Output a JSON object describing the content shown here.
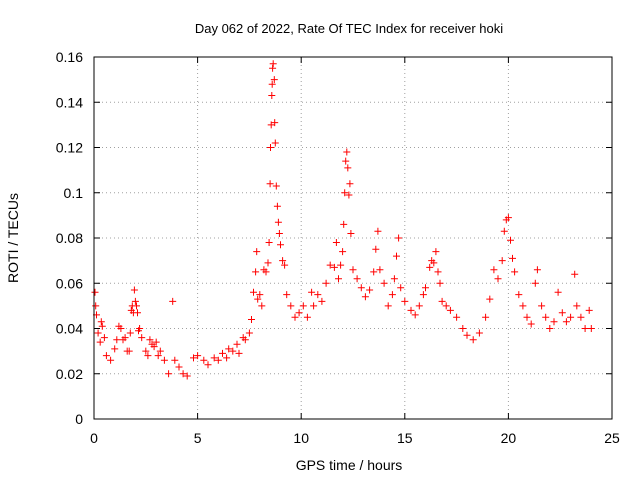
{
  "chart_data": {
    "type": "scatter",
    "title": "Day 062 of 2022, Rate Of TEC Index for receiver hoki",
    "xlabel": "GPS time / hours",
    "ylabel": "ROTI / TECUs",
    "xlim": [
      0,
      25
    ],
    "ylim": [
      0,
      0.16
    ],
    "x_ticks": [
      "0",
      "5",
      "10",
      "15",
      "20",
      "25"
    ],
    "y_ticks": [
      "0",
      "0.02",
      "0.04",
      "0.06",
      "0.08",
      "0.1",
      "0.12",
      "0.14",
      "0.16"
    ],
    "grid": true,
    "marker": "plus",
    "color": "#ff0000",
    "series": [
      {
        "name": "",
        "points": [
          [
            0.05,
            0.056
          ],
          [
            0.08,
            0.05
          ],
          [
            0.12,
            0.046
          ],
          [
            0.2,
            0.038
          ],
          [
            0.3,
            0.034
          ],
          [
            0.35,
            0.043
          ],
          [
            0.4,
            0.041
          ],
          [
            0.5,
            0.036
          ],
          [
            0.6,
            0.028
          ],
          [
            0.8,
            0.026
          ],
          [
            1.0,
            0.031
          ],
          [
            1.1,
            0.035
          ],
          [
            1.2,
            0.041
          ],
          [
            1.3,
            0.04
          ],
          [
            1.4,
            0.035
          ],
          [
            1.5,
            0.036
          ],
          [
            1.6,
            0.03
          ],
          [
            1.7,
            0.03
          ],
          [
            1.75,
            0.038
          ],
          [
            1.8,
            0.048
          ],
          [
            1.85,
            0.05
          ],
          [
            1.9,
            0.047
          ],
          [
            1.95,
            0.057
          ],
          [
            2.0,
            0.052
          ],
          [
            2.05,
            0.05
          ],
          [
            2.1,
            0.047
          ],
          [
            2.15,
            0.039
          ],
          [
            2.2,
            0.04
          ],
          [
            2.3,
            0.036
          ],
          [
            2.5,
            0.03
          ],
          [
            2.6,
            0.028
          ],
          [
            2.7,
            0.035
          ],
          [
            2.8,
            0.033
          ],
          [
            2.9,
            0.032
          ],
          [
            3.0,
            0.034
          ],
          [
            3.1,
            0.028
          ],
          [
            3.2,
            0.03
          ],
          [
            3.4,
            0.026
          ],
          [
            3.6,
            0.02
          ],
          [
            3.8,
            0.052
          ],
          [
            3.9,
            0.026
          ],
          [
            4.1,
            0.023
          ],
          [
            4.3,
            0.02
          ],
          [
            4.5,
            0.019
          ],
          [
            4.8,
            0.027
          ],
          [
            5.0,
            0.028
          ],
          [
            5.3,
            0.026
          ],
          [
            5.5,
            0.024
          ],
          [
            5.8,
            0.027
          ],
          [
            6.0,
            0.026
          ],
          [
            6.2,
            0.029
          ],
          [
            6.4,
            0.027
          ],
          [
            6.5,
            0.031
          ],
          [
            6.7,
            0.03
          ],
          [
            6.9,
            0.033
          ],
          [
            7.0,
            0.029
          ],
          [
            7.2,
            0.036
          ],
          [
            7.3,
            0.035
          ],
          [
            7.5,
            0.038
          ],
          [
            7.6,
            0.044
          ],
          [
            7.7,
            0.056
          ],
          [
            7.8,
            0.065
          ],
          [
            7.85,
            0.074
          ],
          [
            7.9,
            0.053
          ],
          [
            8.0,
            0.055
          ],
          [
            8.1,
            0.05
          ],
          [
            8.2,
            0.066
          ],
          [
            8.3,
            0.065
          ],
          [
            8.4,
            0.069
          ],
          [
            8.45,
            0.078
          ],
          [
            8.5,
            0.104
          ],
          [
            8.52,
            0.12
          ],
          [
            8.55,
            0.13
          ],
          [
            8.58,
            0.143
          ],
          [
            8.6,
            0.148
          ],
          [
            8.62,
            0.155
          ],
          [
            8.65,
            0.157
          ],
          [
            8.7,
            0.15
          ],
          [
            8.72,
            0.131
          ],
          [
            8.75,
            0.122
          ],
          [
            8.8,
            0.103
          ],
          [
            8.85,
            0.094
          ],
          [
            8.9,
            0.087
          ],
          [
            8.95,
            0.082
          ],
          [
            9.0,
            0.077
          ],
          [
            9.1,
            0.07
          ],
          [
            9.2,
            0.068
          ],
          [
            9.3,
            0.055
          ],
          [
            9.5,
            0.05
          ],
          [
            9.7,
            0.045
          ],
          [
            9.9,
            0.047
          ],
          [
            10.1,
            0.05
          ],
          [
            10.3,
            0.045
          ],
          [
            10.5,
            0.056
          ],
          [
            10.6,
            0.05
          ],
          [
            10.8,
            0.055
          ],
          [
            11.0,
            0.052
          ],
          [
            11.2,
            0.06
          ],
          [
            11.4,
            0.068
          ],
          [
            11.6,
            0.067
          ],
          [
            11.7,
            0.078
          ],
          [
            11.8,
            0.062
          ],
          [
            11.9,
            0.068
          ],
          [
            12.0,
            0.074
          ],
          [
            12.05,
            0.086
          ],
          [
            12.1,
            0.1
          ],
          [
            12.15,
            0.114
          ],
          [
            12.2,
            0.118
          ],
          [
            12.25,
            0.111
          ],
          [
            12.3,
            0.099
          ],
          [
            12.35,
            0.104
          ],
          [
            12.4,
            0.082
          ],
          [
            12.5,
            0.066
          ],
          [
            12.7,
            0.062
          ],
          [
            12.9,
            0.058
          ],
          [
            13.1,
            0.054
          ],
          [
            13.3,
            0.057
          ],
          [
            13.5,
            0.065
          ],
          [
            13.6,
            0.075
          ],
          [
            13.7,
            0.083
          ],
          [
            13.8,
            0.066
          ],
          [
            14.0,
            0.06
          ],
          [
            14.2,
            0.05
          ],
          [
            14.4,
            0.055
          ],
          [
            14.5,
            0.062
          ],
          [
            14.6,
            0.072
          ],
          [
            14.7,
            0.08
          ],
          [
            14.8,
            0.058
          ],
          [
            15.0,
            0.052
          ],
          [
            15.3,
            0.048
          ],
          [
            15.5,
            0.046
          ],
          [
            15.7,
            0.05
          ],
          [
            15.9,
            0.055
          ],
          [
            16.0,
            0.058
          ],
          [
            16.2,
            0.067
          ],
          [
            16.3,
            0.07
          ],
          [
            16.4,
            0.069
          ],
          [
            16.5,
            0.074
          ],
          [
            16.6,
            0.065
          ],
          [
            16.7,
            0.06
          ],
          [
            16.8,
            0.052
          ],
          [
            17.0,
            0.05
          ],
          [
            17.2,
            0.048
          ],
          [
            17.5,
            0.045
          ],
          [
            17.8,
            0.04
          ],
          [
            18.0,
            0.037
          ],
          [
            18.3,
            0.035
          ],
          [
            18.6,
            0.038
          ],
          [
            18.9,
            0.045
          ],
          [
            19.1,
            0.053
          ],
          [
            19.3,
            0.066
          ],
          [
            19.5,
            0.062
          ],
          [
            19.7,
            0.07
          ],
          [
            19.8,
            0.083
          ],
          [
            19.9,
            0.088
          ],
          [
            20.0,
            0.089
          ],
          [
            20.1,
            0.079
          ],
          [
            20.2,
            0.071
          ],
          [
            20.3,
            0.065
          ],
          [
            20.5,
            0.055
          ],
          [
            20.7,
            0.05
          ],
          [
            20.9,
            0.045
          ],
          [
            21.1,
            0.042
          ],
          [
            21.3,
            0.06
          ],
          [
            21.4,
            0.066
          ],
          [
            21.6,
            0.05
          ],
          [
            21.8,
            0.045
          ],
          [
            22.0,
            0.04
          ],
          [
            22.2,
            0.043
          ],
          [
            22.4,
            0.056
          ],
          [
            22.6,
            0.047
          ],
          [
            22.8,
            0.043
          ],
          [
            23.0,
            0.045
          ],
          [
            23.2,
            0.064
          ],
          [
            23.3,
            0.05
          ],
          [
            23.5,
            0.045
          ],
          [
            23.7,
            0.04
          ],
          [
            23.9,
            0.048
          ],
          [
            24.0,
            0.04
          ]
        ]
      }
    ]
  }
}
